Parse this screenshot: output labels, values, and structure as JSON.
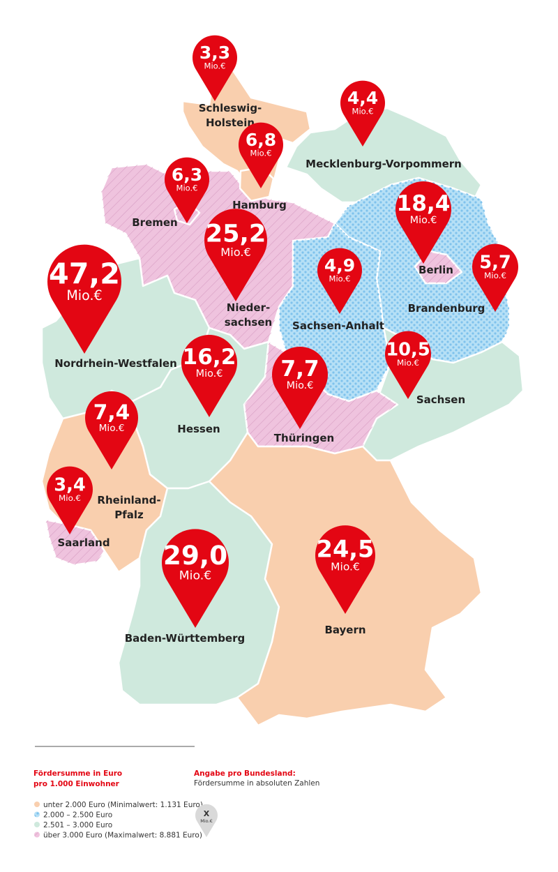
{
  "states": [
    {
      "label_lines": [
        "Schleswig-",
        "Holstein"
      ],
      "value": "3,3",
      "unit": "Mio.€",
      "category": 0
    },
    {
      "label_lines": [
        "Mecklenburg-Vorpommern"
      ],
      "value": "4,4",
      "unit": "Mio.€",
      "category": 2
    },
    {
      "label_lines": [
        "Hamburg"
      ],
      "value": "6,8",
      "unit": "Mio.€",
      "category": 0
    },
    {
      "label_lines": [
        "Bremen"
      ],
      "value": "6,3",
      "unit": "Mio.€",
      "category": 3
    },
    {
      "label_lines": [
        "Nieder-",
        "sachsen"
      ],
      "value": "25,2",
      "unit": "Mio.€",
      "category": 3
    },
    {
      "label_lines": [
        "Berlin"
      ],
      "value": "18,4",
      "unit": "Mio.€",
      "category": 3
    },
    {
      "label_lines": [
        "Brandenburg"
      ],
      "value": "5,7",
      "unit": "Mio.€",
      "category": 1
    },
    {
      "label_lines": [
        "Sachsen-Anhalt"
      ],
      "value": "4,9",
      "unit": "Mio.€",
      "category": 1
    },
    {
      "label_lines": [
        "Nordrhein-Westfalen"
      ],
      "value": "47,2",
      "unit": "Mio.€",
      "category": 2
    },
    {
      "label_lines": [
        "Sachsen"
      ],
      "value": "10,5",
      "unit": "Mio.€",
      "category": 2
    },
    {
      "label_lines": [
        "Hessen"
      ],
      "value": "16,2",
      "unit": "Mio.€",
      "category": 2
    },
    {
      "label_lines": [
        "Thüringen"
      ],
      "value": "7,7",
      "unit": "Mio.€",
      "category": 3
    },
    {
      "label_lines": [
        "Rheinland-",
        "Pfalz"
      ],
      "value": "7,4",
      "unit": "Mio.€",
      "category": 0
    },
    {
      "label_lines": [
        "Saarland"
      ],
      "value": "3,4",
      "unit": "Mio.€",
      "category": 3
    },
    {
      "label_lines": [
        "Baden-Württemberg"
      ],
      "value": "29,0",
      "unit": "Mio.€",
      "category": 2
    },
    {
      "label_lines": [
        "Bayern"
      ],
      "value": "24,5",
      "unit": "Mio.€",
      "category": 0
    }
  ],
  "legend": {
    "title_lines": [
      "Fördersumme in Euro",
      "pro 1.000 Einwohner"
    ],
    "items": [
      {
        "label": "unter 2.000 Euro (Minimalwert: 1.131 Euro)",
        "color": "#f9cfae",
        "pattern": "none"
      },
      {
        "label": "2.000 – 2.500 Euro",
        "color": "#b6e0f6",
        "pattern": "dots"
      },
      {
        "label": "2.501 – 3.000 Euro",
        "color": "#cfe9dd",
        "pattern": "none"
      },
      {
        "label": "über 3.000 Euro (Maximalwert: 8.881 Euro)",
        "color": "#efc3de",
        "pattern": "hatch"
      }
    ]
  },
  "note": {
    "title": "Angabe pro Bundesland:",
    "text": "Fördersumme in absoluten Zahlen",
    "pin_symbol": "X",
    "pin_unit": "Mio.€"
  }
}
